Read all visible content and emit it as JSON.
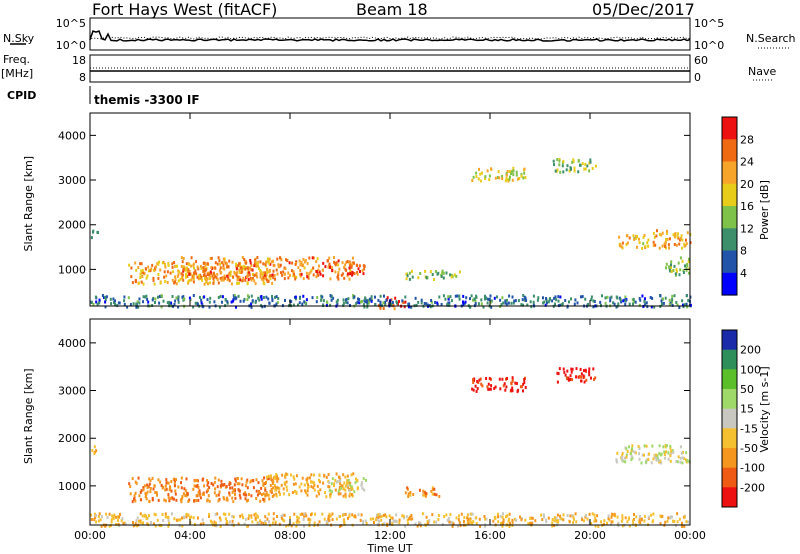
{
  "header": {
    "title": "Fort Hays West (fitACF)",
    "beam": "Beam 18",
    "date": "05/Dec/2017"
  },
  "strips": {
    "nsky_label": "N.Sky",
    "nsearch_label": "N.Search",
    "nsky_ticks": [
      "10^5",
      "10^0"
    ],
    "nsearch_ticks": [
      "10^5",
      "10^0"
    ],
    "freq_label": "Freq.",
    "freq_unit": "[MHz]",
    "freq_ticks": [
      "18",
      "8"
    ],
    "nave_label": "Nave",
    "nave_ticks": [
      "60",
      "0"
    ],
    "cpid_label": "CPID",
    "cpid_text": "themis -3300 IF"
  },
  "chart_data": [
    {
      "type": "heatmap",
      "panel": "power",
      "xlabel": "Time UT",
      "ylabel": "Slant Range [km]",
      "x_ticks": [
        "00:00",
        "04:00",
        "08:00",
        "12:00",
        "16:00",
        "20:00",
        "00:00"
      ],
      "y_ticks": [
        1000,
        2000,
        3000,
        4000
      ],
      "xlim_hours": [
        0,
        24
      ],
      "ylim_km": [
        180,
        4500
      ],
      "colorbar": {
        "label": "Power [dB]",
        "ticks": [
          4,
          8,
          12,
          16,
          20,
          24,
          28
        ],
        "colors": [
          "#0000ff",
          "#2255aa",
          "#3c8f6a",
          "#7ec24a",
          "#e8cc1a",
          "#f7a52a",
          "#f06a14",
          "#ee1111"
        ]
      },
      "echo_regions": [
        {
          "t_start": 0.0,
          "t_end": 0.3,
          "range_min": 1700,
          "range_max": 1900,
          "level": 8
        },
        {
          "t_start": 1.5,
          "t_end": 7.3,
          "range_min": 700,
          "range_max": 1200,
          "level": 22
        },
        {
          "t_start": 3.5,
          "t_end": 10.5,
          "range_min": 800,
          "range_max": 1300,
          "level": 24
        },
        {
          "t_start": 9.5,
          "t_end": 11.0,
          "range_min": 900,
          "range_max": 1200,
          "level": 26
        },
        {
          "t_start": 11.5,
          "t_end": 12.6,
          "range_min": 150,
          "range_max": 400,
          "level": 28
        },
        {
          "t_start": 12.5,
          "t_end": 14.8,
          "range_min": 800,
          "range_max": 1000,
          "level": 14
        },
        {
          "t_start": 15.2,
          "t_end": 17.4,
          "range_min": 3000,
          "range_max": 3300,
          "level": 18
        },
        {
          "t_start": 18.5,
          "t_end": 20.2,
          "range_min": 3200,
          "range_max": 3500,
          "level": 14
        },
        {
          "t_start": 21.0,
          "t_end": 22.3,
          "range_min": 1500,
          "range_max": 1800,
          "level": 20
        },
        {
          "t_start": 22.5,
          "t_end": 24.0,
          "range_min": 1500,
          "range_max": 1900,
          "level": 22
        },
        {
          "t_start": 23.0,
          "t_end": 24.0,
          "range_min": 900,
          "range_max": 1300,
          "level": 14
        },
        {
          "t_start": 0.0,
          "t_end": 24.0,
          "range_min": 180,
          "range_max": 450,
          "level": 8
        }
      ]
    },
    {
      "type": "heatmap",
      "panel": "velocity",
      "xlabel": "Time UT",
      "ylabel": "Slant Range [km]",
      "x_ticks": [
        "00:00",
        "04:00",
        "08:00",
        "12:00",
        "16:00",
        "20:00",
        "00:00"
      ],
      "y_ticks": [
        1000,
        2000,
        3000,
        4000
      ],
      "xlim_hours": [
        0,
        24
      ],
      "ylim_km": [
        180,
        4500
      ],
      "colorbar": {
        "label": "Velocity [m s-1]",
        "ticks": [
          200,
          100,
          50,
          15,
          -15,
          -50,
          -100,
          -200
        ],
        "colors": [
          "#1a2aa8",
          "#2f8f5a",
          "#5bbf2a",
          "#9fd96a",
          "#c8c8c0",
          "#f5c030",
          "#f5961e",
          "#ef5a14",
          "#ee1111"
        ]
      },
      "echo_regions": [
        {
          "t_start": 0.0,
          "t_end": 0.3,
          "range_min": 1700,
          "range_max": 1900,
          "value": -50
        },
        {
          "t_start": 1.5,
          "t_end": 7.3,
          "range_min": 700,
          "range_max": 1200,
          "value": -100
        },
        {
          "t_start": 7.0,
          "t_end": 10.5,
          "range_min": 800,
          "range_max": 1300,
          "value": -60
        },
        {
          "t_start": 9.5,
          "t_end": 11.0,
          "range_min": 900,
          "range_max": 1200,
          "value": 0
        },
        {
          "t_start": 12.5,
          "t_end": 14.0,
          "range_min": 800,
          "range_max": 1000,
          "value": -80
        },
        {
          "t_start": 15.2,
          "t_end": 17.4,
          "range_min": 3000,
          "range_max": 3300,
          "value": -220
        },
        {
          "t_start": 18.5,
          "t_end": 20.2,
          "range_min": 3200,
          "range_max": 3500,
          "value": -220
        },
        {
          "t_start": 21.0,
          "t_end": 24.0,
          "range_min": 1500,
          "range_max": 1900,
          "value": 0
        },
        {
          "t_start": 0.0,
          "t_end": 24.0,
          "range_min": 180,
          "range_max": 450,
          "value": -40
        }
      ]
    }
  ]
}
